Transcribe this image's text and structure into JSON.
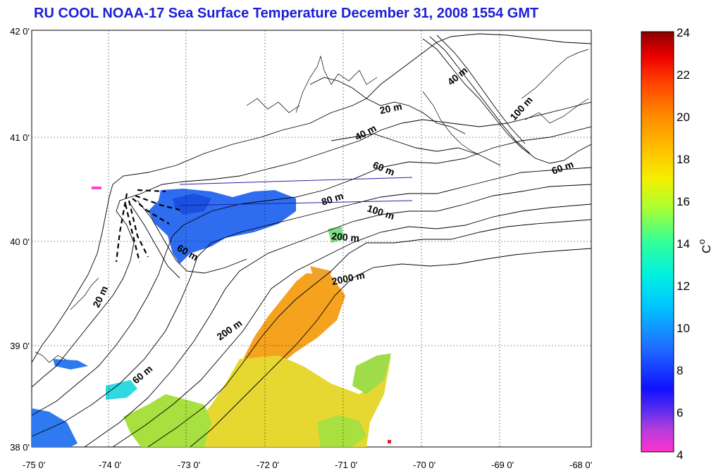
{
  "title": "RU COOL  NOAA-17 Sea Surface Temperature December 31, 2008 1554 GMT",
  "map": {
    "lon_ticks": [
      "-75 0'",
      "-74 0'",
      "-73 0'",
      "-72 0'",
      "-71 0'",
      "-70 0'",
      "-69 0'",
      "-68 0'"
    ],
    "lat_ticks": [
      "38 0'",
      "39 0'",
      "40 0'",
      "41 0'",
      "42 0'"
    ],
    "contour_labels": {
      "c20_top": "20 m",
      "c40_top": "40 m",
      "c40_ne": "40 m",
      "c100_ne": "100 m",
      "c60_mid": "60 m",
      "c60_east": "60 m",
      "c80": "80 m",
      "c100_mid": "100 m",
      "c200_top": "200 m",
      "c60_hudson": "60 m",
      "c2000": "2000 m",
      "c20_nj": "20 m",
      "c200_sw": "200 m",
      "c60_sw": "60 m"
    }
  },
  "colorbar": {
    "ticks": [
      "24",
      "22",
      "20",
      "18",
      "16",
      "14",
      "12",
      "10",
      "8",
      "6",
      "4"
    ],
    "unit": "C",
    "unit_super": "o"
  },
  "colors": {
    "title": "#1a1fd6",
    "warm_sst": "#f5a21e",
    "mid_sst": "#e6d830",
    "green_sst": "#a8e040",
    "cold_sst": "#2f6df0",
    "cyan_sst": "#2fd9e0"
  }
}
